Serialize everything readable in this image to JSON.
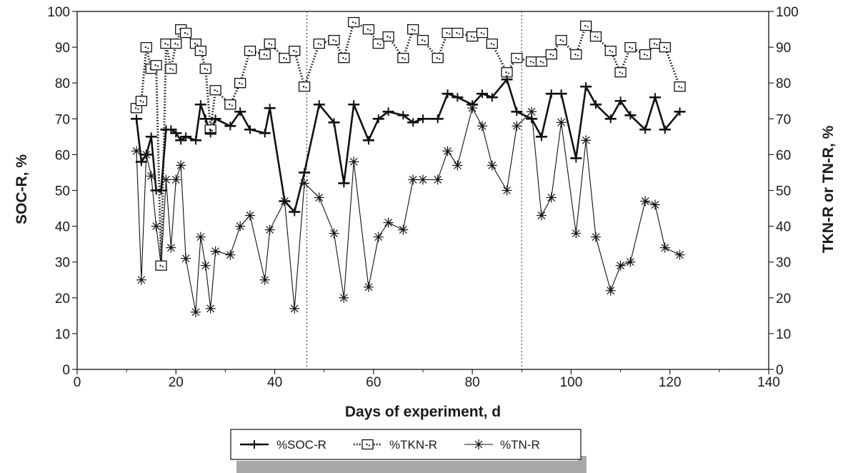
{
  "chart_data": {
    "type": "line",
    "xlabel": "Days of experiment, d",
    "ylabel": "SOC-R, %",
    "y2label": "TKN-R or TN-R, %",
    "xlim": [
      0,
      140
    ],
    "ylim": [
      0,
      100
    ],
    "y2lim": [
      0,
      100
    ],
    "xticks": [
      0,
      20,
      40,
      60,
      80,
      100,
      120,
      140
    ],
    "yticks": [
      0,
      10,
      20,
      30,
      40,
      50,
      60,
      70,
      80,
      90,
      100
    ],
    "grid": false,
    "legend_position": "bottom",
    "vlines": [
      46.5,
      90
    ],
    "series": [
      {
        "name": "%SOC-R",
        "axis": "left",
        "style": "solid",
        "marker": "plus",
        "x": [
          12,
          13,
          14,
          15,
          16,
          17,
          18,
          19,
          20,
          21,
          22,
          24,
          25,
          26,
          27,
          28,
          31,
          33,
          35,
          38,
          39,
          42,
          44,
          46,
          49,
          52,
          54,
          56,
          59,
          61,
          63,
          66,
          68,
          70,
          73,
          75,
          77,
          80,
          82,
          84,
          87,
          89,
          92,
          94,
          96,
          98,
          101,
          103,
          105,
          108,
          110,
          112,
          115,
          117,
          119,
          122
        ],
        "y": [
          70,
          58,
          60,
          65,
          50,
          50,
          67,
          67,
          66,
          64,
          65,
          64,
          74,
          70,
          66,
          70,
          68,
          72,
          67,
          66,
          73,
          47,
          44,
          55,
          74,
          69,
          52,
          74,
          64,
          70,
          72,
          71,
          69,
          70,
          70,
          77,
          76,
          74,
          77,
          76,
          81,
          72,
          70,
          65,
          77,
          77,
          59,
          79,
          74,
          70,
          75,
          71,
          67,
          76,
          67,
          72
        ]
      },
      {
        "name": "%TKN-R",
        "axis": "right",
        "style": "dotted",
        "marker": "square",
        "x": [
          12,
          13,
          14,
          15,
          16,
          17,
          18,
          19,
          20,
          21,
          22,
          24,
          25,
          26,
          27,
          28,
          31,
          33,
          35,
          38,
          39,
          42,
          44,
          46,
          49,
          52,
          54,
          56,
          59,
          61,
          63,
          66,
          68,
          70,
          73,
          75,
          77,
          80,
          82,
          84,
          87,
          89,
          92,
          94,
          96,
          98,
          101,
          103,
          105,
          108,
          110,
          112,
          115,
          117,
          119,
          122
        ],
        "y": [
          73,
          75,
          90,
          84,
          85,
          29,
          91,
          84,
          91,
          95,
          94,
          91,
          89,
          84,
          67,
          78,
          74,
          80,
          89,
          88,
          91,
          87,
          89,
          79,
          91,
          92,
          87,
          97,
          95,
          91,
          93,
          87,
          95,
          92,
          87,
          94,
          94,
          93,
          94,
          91,
          83,
          87,
          86,
          86,
          88,
          92,
          88,
          96,
          93,
          89,
          83,
          90,
          88,
          91,
          90,
          79
        ]
      },
      {
        "name": "%TN-R",
        "axis": "right",
        "style": "solid",
        "marker": "asterisk",
        "x": [
          12,
          13,
          14,
          15,
          16,
          17,
          18,
          19,
          20,
          21,
          22,
          24,
          25,
          26,
          27,
          28,
          31,
          33,
          35,
          38,
          39,
          42,
          44,
          46,
          49,
          52,
          54,
          56,
          59,
          61,
          63,
          66,
          68,
          70,
          73,
          75,
          77,
          80,
          82,
          84,
          87,
          89,
          92,
          94,
          96,
          98,
          101,
          103,
          105,
          108,
          110,
          112,
          115,
          117,
          119,
          122
        ],
        "y": [
          61,
          25,
          60,
          54,
          40,
          29,
          53,
          34,
          53,
          57,
          31,
          16,
          37,
          29,
          17,
          33,
          32,
          40,
          43,
          25,
          39,
          47,
          17,
          52,
          48,
          38,
          20,
          58,
          23,
          37,
          41,
          39,
          53,
          53,
          53,
          61,
          57,
          73,
          68,
          57,
          50,
          68,
          72,
          43,
          48,
          69,
          38,
          64,
          37,
          22,
          29,
          30,
          47,
          46,
          34,
          32
        ]
      }
    ]
  }
}
